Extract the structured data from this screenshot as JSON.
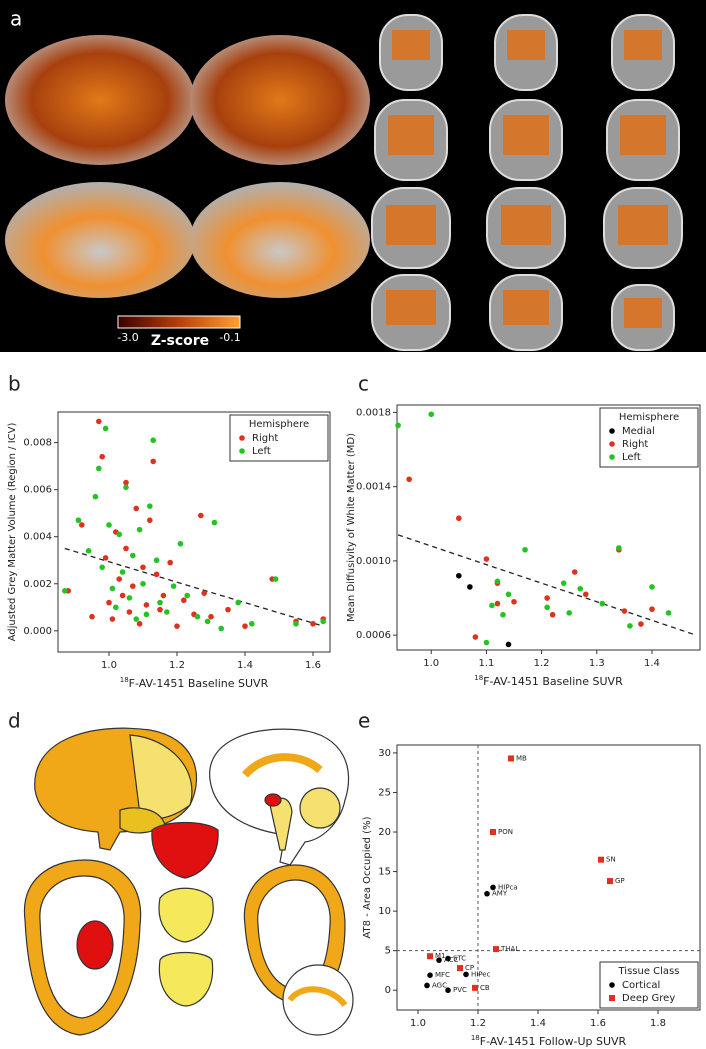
{
  "panels": [
    "a",
    "b",
    "c",
    "d",
    "e"
  ],
  "colorbar": {
    "min_label": "-3.0",
    "max_label": "-0.1",
    "title": "Z-score"
  },
  "chart_data": [
    {
      "type": "scatter",
      "x_label": {
        "sup": "18",
        "text": "F-AV-1451 Baseline SUVR"
      },
      "y_label": "Adjusted Grey Matter Volume (Region / ICV)",
      "xlim": [
        0.85,
        1.65
      ],
      "xticks": [
        {
          "value": 1,
          "label": "1.0"
        },
        1.2,
        1.4,
        1.6
      ],
      "ylim": [
        -0.0009,
        0.0093
      ],
      "yticks": [
        {
          "value": 0,
          "label": "0.000"
        },
        0.002,
        0.004,
        0.006,
        0.008
      ],
      "legend_title": "Hemisphere",
      "legend_position": "top right",
      "trend_line": {
        "x": [
          0.87,
          1.63
        ],
        "y": [
          0.0035,
          0.0002
        ]
      },
      "series": [
        {
          "name": "Right",
          "color": "#e0301e",
          "marker": "circle",
          "x": [
            0.88,
            0.92,
            0.95,
            0.97,
            0.98,
            0.99,
            1.0,
            1.01,
            1.02,
            1.03,
            1.04,
            1.05,
            1.05,
            1.06,
            1.07,
            1.08,
            1.09,
            1.1,
            1.11,
            1.12,
            1.13,
            1.14,
            1.15,
            1.16,
            1.18,
            1.2,
            1.22,
            1.25,
            1.27,
            1.28,
            1.3,
            1.35,
            1.4,
            1.48,
            1.55,
            1.6,
            1.63
          ],
          "values": [
            0.0017,
            0.0045,
            0.0006,
            0.0089,
            0.0074,
            0.0031,
            0.0012,
            0.0005,
            0.0042,
            0.0022,
            0.0015,
            0.0063,
            0.0035,
            0.0008,
            0.0019,
            0.0052,
            0.0003,
            0.0027,
            0.0011,
            0.0047,
            0.0072,
            0.0024,
            0.0009,
            0.0015,
            0.0029,
            0.0002,
            0.0013,
            0.0007,
            0.0049,
            0.0016,
            0.0006,
            0.0009,
            0.0002,
            0.0022,
            0.0004,
            0.0003,
            0.0005
          ]
        },
        {
          "name": "Left",
          "color": "#22c422",
          "marker": "circle",
          "x": [
            0.87,
            0.91,
            0.94,
            0.96,
            0.97,
            0.98,
            0.99,
            1.0,
            1.01,
            1.02,
            1.03,
            1.04,
            1.05,
            1.06,
            1.07,
            1.08,
            1.09,
            1.1,
            1.11,
            1.12,
            1.13,
            1.14,
            1.15,
            1.17,
            1.19,
            1.21,
            1.23,
            1.26,
            1.29,
            1.31,
            1.33,
            1.38,
            1.42,
            1.49,
            1.55,
            1.63
          ],
          "values": [
            0.0017,
            0.0047,
            0.0034,
            0.0057,
            0.0069,
            0.0027,
            0.0086,
            0.0045,
            0.0018,
            0.001,
            0.0041,
            0.0025,
            0.0061,
            0.0014,
            0.0032,
            0.0005,
            0.0043,
            0.002,
            0.0007,
            0.0053,
            0.0081,
            0.003,
            0.0012,
            0.0008,
            0.0019,
            0.0037,
            0.0015,
            0.0006,
            0.0004,
            0.0046,
            0.0001,
            0.0012,
            0.0003,
            0.0022,
            0.0003,
            0.0004
          ]
        }
      ]
    },
    {
      "type": "scatter",
      "x_label": {
        "sup": "18",
        "text": "F-AV-1451 Baseline SUVR"
      },
      "y_label": "Mean Diffusivity of White Matter (MD)",
      "xlim": [
        0.938,
        1.487
      ],
      "xticks": [
        {
          "value": 1,
          "label": "1.0"
        },
        1.1,
        1.2,
        1.3,
        1.4
      ],
      "ylim": [
        0.00052,
        0.00184
      ],
      "yticks": [
        0.0006,
        {
          "value": 0.001,
          "label": "0.0010"
        },
        0.0014,
        0.0018
      ],
      "legend_title": "Hemisphere",
      "legend_position": "top right",
      "trend_line": {
        "x": [
          0.94,
          1.48
        ],
        "y": [
          0.00114,
          0.0006
        ]
      },
      "series": [
        {
          "name": "Medial",
          "color": "#000000",
          "marker": "circle",
          "x": [
            1.05,
            1.07,
            1.14
          ],
          "values": [
            0.00092,
            0.00086,
            0.00055
          ]
        },
        {
          "name": "Right",
          "color": "#e0301e",
          "marker": "circle",
          "x": [
            0.96,
            1.05,
            1.08,
            1.1,
            1.12,
            1.12,
            1.15,
            1.21,
            1.22,
            1.26,
            1.28,
            1.34,
            1.35,
            1.38,
            1.4
          ],
          "values": [
            0.00144,
            0.00123,
            0.00059,
            0.00101,
            0.00088,
            0.00077,
            0.00078,
            0.0008,
            0.00071,
            0.00094,
            0.00082,
            0.00106,
            0.00073,
            0.00066,
            0.00074
          ]
        },
        {
          "name": "Left",
          "color": "#22c422",
          "marker": "circle",
          "x": [
            0.94,
            1.0,
            1.1,
            1.11,
            1.12,
            1.13,
            1.14,
            1.17,
            1.21,
            1.24,
            1.25,
            1.27,
            1.31,
            1.34,
            1.36,
            1.4,
            1.43
          ],
          "values": [
            0.00173,
            0.00179,
            0.00056,
            0.00076,
            0.00089,
            0.00071,
            0.00082,
            0.00106,
            0.00075,
            0.00088,
            0.00072,
            0.00085,
            0.00077,
            0.00107,
            0.00065,
            0.00086,
            0.00072
          ]
        }
      ]
    },
    {
      "type": "scatter",
      "x_label": {
        "sup": "18",
        "text": "F-AV-1451 Follow-Up SUVR"
      },
      "y_label": "AT8 - Area Occupied (%)",
      "xlim": [
        0.93,
        1.94
      ],
      "xticks": [
        {
          "value": 1,
          "label": "1.0"
        },
        1.2,
        1.4,
        1.6,
        1.8
      ],
      "ylim": [
        -2.5,
        31
      ],
      "yticks": [
        0,
        5,
        10,
        15,
        20,
        25,
        30
      ],
      "reference_lines": {
        "x": 1.2,
        "y": 5
      },
      "legend_title": "Tissue Class",
      "legend_position": "bottom right",
      "series": [
        {
          "name": "Cortical",
          "color": "#000000",
          "marker": "circle",
          "x": [
            1.1,
            1.07,
            1.25,
            1.23,
            1.04,
            1.03,
            1.1,
            1.16
          ],
          "values": [
            4.0,
            3.8,
            13.0,
            12.2,
            1.9,
            0.6,
            0.0,
            2.0
          ],
          "labels": [
            "STC",
            "ACC",
            "HIPca",
            "AMY",
            "MFC",
            "AGC",
            "PVC",
            "HIPec"
          ]
        },
        {
          "name": "Deep Grey",
          "color": "#e0301e",
          "marker": "square",
          "x": [
            1.31,
            1.25,
            1.61,
            1.64,
            1.26,
            1.04,
            1.14,
            1.19
          ],
          "values": [
            29.3,
            20.0,
            16.5,
            13.8,
            5.2,
            4.3,
            2.8,
            0.3
          ],
          "labels": [
            "MB",
            "PON",
            "SN",
            "GP",
            "THAL",
            "M1",
            "CP",
            "CB"
          ]
        }
      ]
    }
  ]
}
